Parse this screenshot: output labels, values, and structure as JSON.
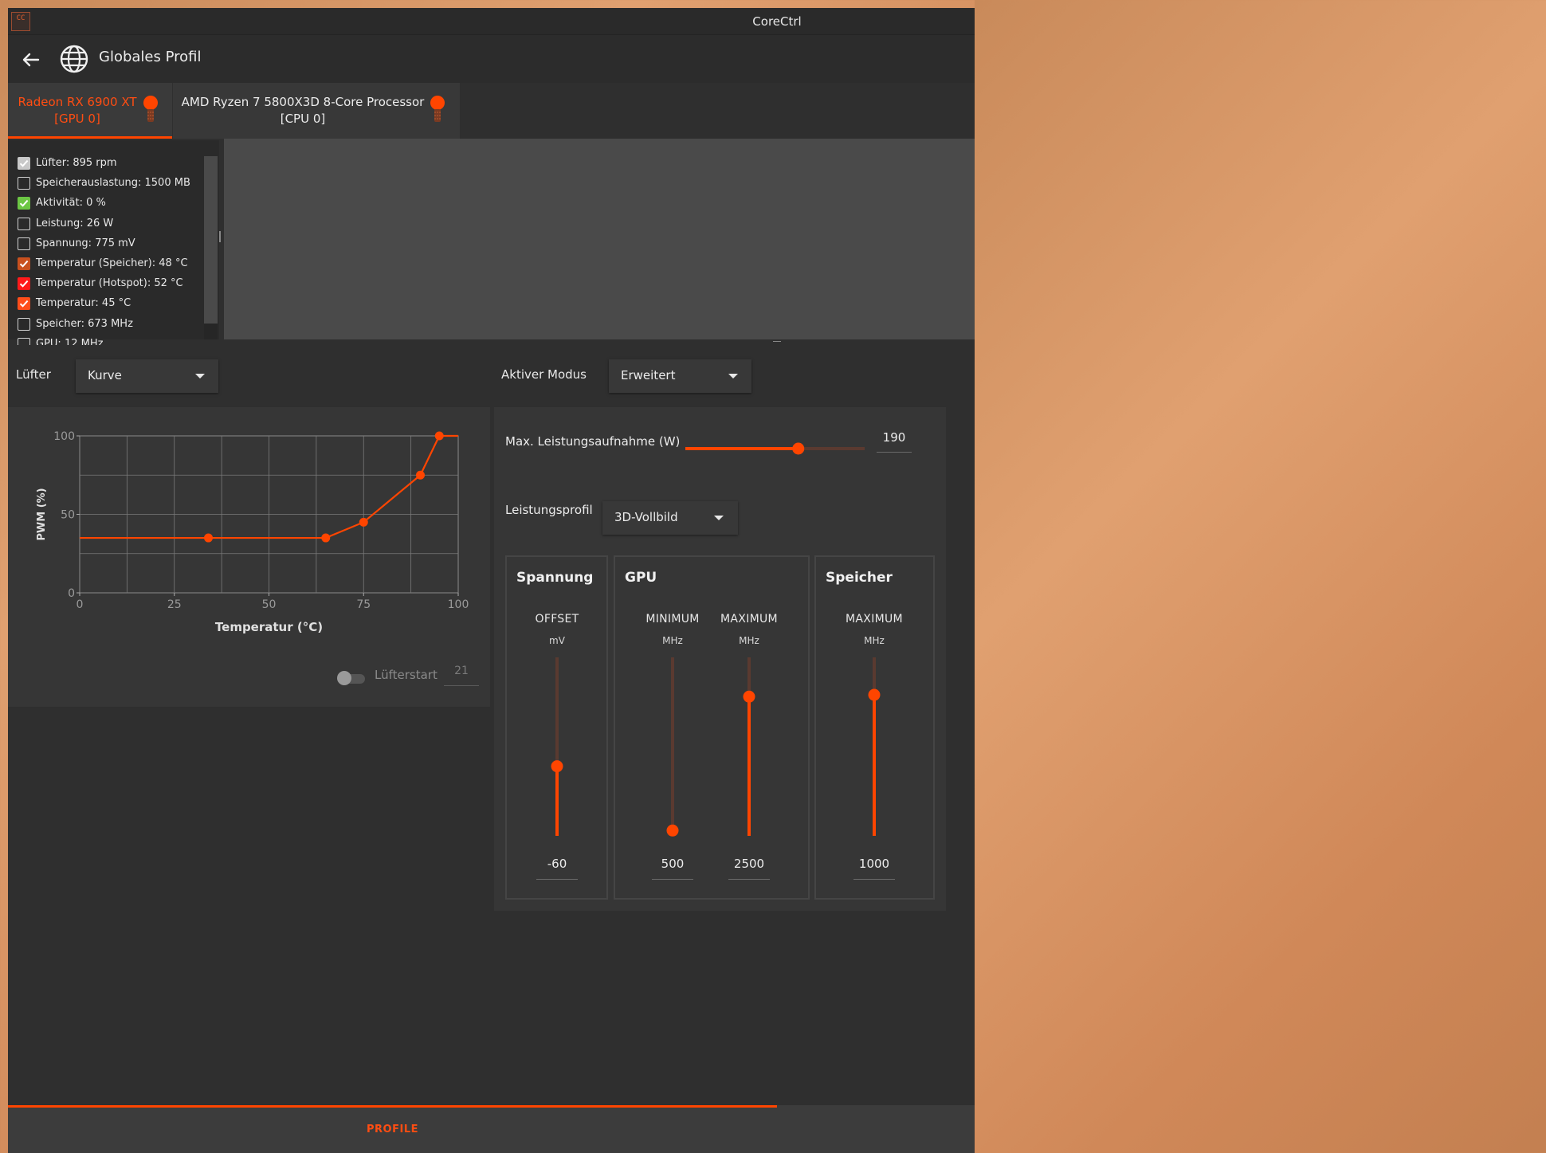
{
  "window": {
    "title": "CoreCtrl",
    "app_icon_text": "CC"
  },
  "header": {
    "title": "Globales Profil"
  },
  "tabs": [
    {
      "line1": "Radeon RX 6900 XT",
      "line2": "[GPU 0]",
      "active": true
    },
    {
      "line1": "AMD Ryzen 7 5800X3D 8-Core Processor",
      "line2": "[CPU 0]",
      "active": false
    }
  ],
  "sensors": [
    {
      "label": "Lüfter: 895 rpm",
      "checked": true,
      "color": "#c8c8c8"
    },
    {
      "label": "Speicherauslastung: 1500 MB",
      "checked": false,
      "color": ""
    },
    {
      "label": "Aktivität: 0 %",
      "checked": true,
      "color": "#6cc644"
    },
    {
      "label": "Leistung: 26 W",
      "checked": false,
      "color": ""
    },
    {
      "label": "Spannung: 775 mV",
      "checked": false,
      "color": ""
    },
    {
      "label": "Temperatur (Speicher): 48 °C",
      "checked": true,
      "color": "#c8501e"
    },
    {
      "label": "Temperatur (Hotspot): 52 °C",
      "checked": true,
      "color": "#ff1a1a"
    },
    {
      "label": "Temperatur: 45 °C",
      "checked": true,
      "color": "#ff4d1a"
    },
    {
      "label": "Speicher: 673 MHz",
      "checked": false,
      "color": ""
    },
    {
      "label": "GPU: 12 MHz",
      "checked": false,
      "color": ""
    }
  ],
  "fan": {
    "label": "Lüfter",
    "mode": "Kurve",
    "fanstart_label": "Lüfterstart",
    "fanstart_value": "21"
  },
  "fan_chart": {
    "type": "line",
    "xlabel": "Temperatur (°C)",
    "ylabel": "PWM (%)",
    "xlim": [
      0,
      100
    ],
    "ylim": [
      0,
      100
    ],
    "x_ticks": [
      "0",
      "25",
      "50",
      "75",
      "100"
    ],
    "y_ticks": [
      "0",
      "50",
      "100"
    ],
    "points": [
      [
        34,
        35
      ],
      [
        65,
        35
      ],
      [
        75,
        45
      ],
      [
        90,
        75
      ],
      [
        95,
        100
      ]
    ],
    "line_start": [
      0,
      35
    ],
    "line_end": [
      100,
      100
    ],
    "color": "#ff4500"
  },
  "power": {
    "mode_label": "Aktiver Modus",
    "mode_value": "Erweitert",
    "max_power_label": "Max. Leistungsaufnahme (W)",
    "max_power_value": "190",
    "max_power_fraction": 0.63,
    "perf_profile_label": "Leistungsprofil",
    "perf_profile_value": "3D-Vollbild"
  },
  "groups": {
    "voltage": {
      "title": "Spannung",
      "col1": {
        "head": "OFFSET",
        "unit": "mV",
        "value": "-60",
        "fraction": 0.39
      }
    },
    "gpu": {
      "title": "GPU",
      "col1": {
        "head": "MINIMUM",
        "unit": "MHz",
        "value": "500",
        "fraction": 0.03
      },
      "col2": {
        "head": "MAXIMUM",
        "unit": "MHz",
        "value": "2500",
        "fraction": 0.78
      }
    },
    "memory": {
      "title": "Speicher",
      "col1": {
        "head": "MAXIMUM",
        "unit": "MHz",
        "value": "1000",
        "fraction": 0.79
      }
    }
  },
  "bottom": {
    "tab_label": "PROFILE"
  },
  "colors": {
    "accent": "#ff4500",
    "bg": "#2f2f2f",
    "panel": "#363636"
  }
}
